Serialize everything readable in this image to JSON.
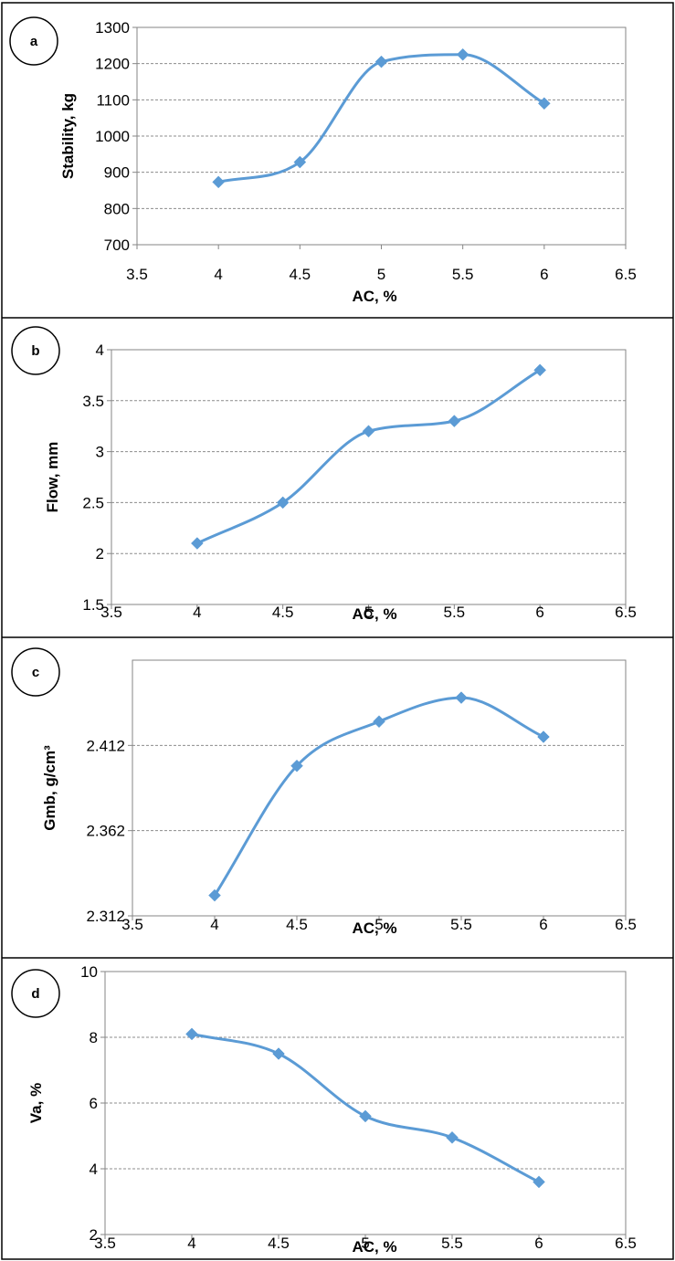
{
  "colors": {
    "series": "#5B9BD5",
    "grid": "#8c8c8c",
    "frame": "#000000",
    "plot_border": "#868686"
  },
  "chart_data": [
    {
      "type": "line",
      "label": "a",
      "xlabel": "AC, %",
      "ylabel": "Stability, kg",
      "xlim": [
        3.5,
        6.5
      ],
      "ylim": [
        700,
        1300
      ],
      "x_ticks": [
        "3.5",
        "4",
        "4.5",
        "5",
        "5.5",
        "6",
        "6.5"
      ],
      "y_ticks": [
        "700",
        "800",
        "900",
        "1000",
        "1100",
        "1200",
        "1300"
      ],
      "gridlines": "horizontal",
      "smooth": true,
      "marker": "diamond",
      "x": [
        4,
        4.5,
        5,
        5.5,
        6
      ],
      "y": [
        873,
        928,
        1205,
        1225,
        1090
      ]
    },
    {
      "type": "line",
      "label": "b",
      "xlabel": "AC, %",
      "ylabel": "Flow, mm",
      "xlim": [
        3.5,
        6.5
      ],
      "ylim": [
        1.5,
        4
      ],
      "x_ticks": [
        "3.5",
        "4",
        "4.5",
        "5",
        "5.5",
        "6",
        "6.5"
      ],
      "y_ticks": [
        "1.5",
        "2",
        "2.5",
        "3",
        "3.5",
        "4"
      ],
      "gridlines": "horizontal",
      "smooth": true,
      "marker": "diamond",
      "x": [
        4,
        4.5,
        5,
        5.5,
        6
      ],
      "y": [
        2.1,
        2.5,
        3.2,
        3.3,
        3.8
      ]
    },
    {
      "type": "line",
      "label": "c",
      "xlabel": "AC, %",
      "ylabel": "Gmb, g/cm³",
      "xlim": [
        3.5,
        6.5
      ],
      "ylim": [
        2.312,
        2.462
      ],
      "x_ticks": [
        "3.5",
        "4",
        "4.5",
        "5",
        "5.5",
        "6",
        "6.5"
      ],
      "y_ticks": [
        "2.312",
        "2.362",
        "2.412"
      ],
      "gridlines": "horizontal",
      "smooth": true,
      "marker": "diamond",
      "x": [
        4,
        4.5,
        5,
        5.5,
        6
      ],
      "y": [
        2.324,
        2.4,
        2.426,
        2.44,
        2.417
      ]
    },
    {
      "type": "line",
      "label": "d",
      "xlabel": "AC, %",
      "ylabel": "Va, %",
      "xlim": [
        3.5,
        6.5
      ],
      "ylim": [
        2,
        10
      ],
      "x_ticks": [
        "3.5",
        "4",
        "4.5",
        "5",
        "5.5",
        "6",
        "6.5"
      ],
      "y_ticks": [
        "2",
        "4",
        "6",
        "8",
        "10"
      ],
      "gridlines": "horizontal",
      "smooth": true,
      "marker": "diamond",
      "x": [
        4,
        4.5,
        5,
        5.5,
        6
      ],
      "y": [
        8.1,
        7.5,
        5.6,
        4.95,
        3.6
      ]
    }
  ]
}
